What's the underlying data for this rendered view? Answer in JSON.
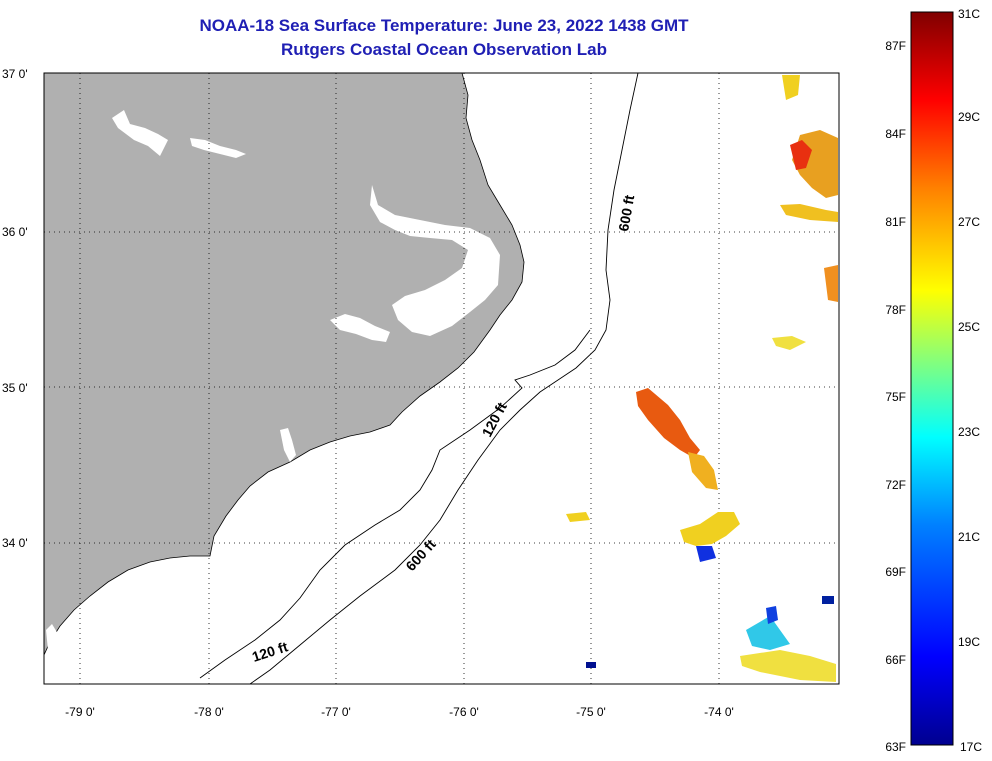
{
  "title": "NOAA-18 Sea Surface Temperature:  June 23, 2022 1438 GMT",
  "subtitle": "Rutgers Coastal Ocean Observation Lab",
  "axes": {
    "lon_labels": [
      "-79 0'",
      "-78 0'",
      "-77 0'",
      "-76 0'",
      "-75 0'",
      "-74 0'"
    ],
    "lat_labels": [
      "37 0'",
      "36 0'",
      "35 0'",
      "34 0'"
    ]
  },
  "contours": {
    "label_600_north": "600 ft",
    "label_120_mid": "120 ft",
    "label_600_south": "600 ft",
    "label_120_south": "120 ft"
  },
  "colorbar": {
    "fahrenheit": [
      "87F",
      "84F",
      "81F",
      "78F",
      "75F",
      "72F",
      "69F",
      "66F",
      "63F"
    ],
    "celsius": [
      "31C",
      "29C",
      "27C",
      "25C",
      "23C",
      "21C",
      "19C",
      "17C"
    ],
    "colors": [
      "#00008f",
      "#0000ff",
      "#0080ff",
      "#00ffff",
      "#80ff80",
      "#ffff00",
      "#ff8000",
      "#ff0000",
      "#800000"
    ]
  },
  "colors": {
    "land": "#b0b0b0",
    "title": "#1f1fb4"
  }
}
